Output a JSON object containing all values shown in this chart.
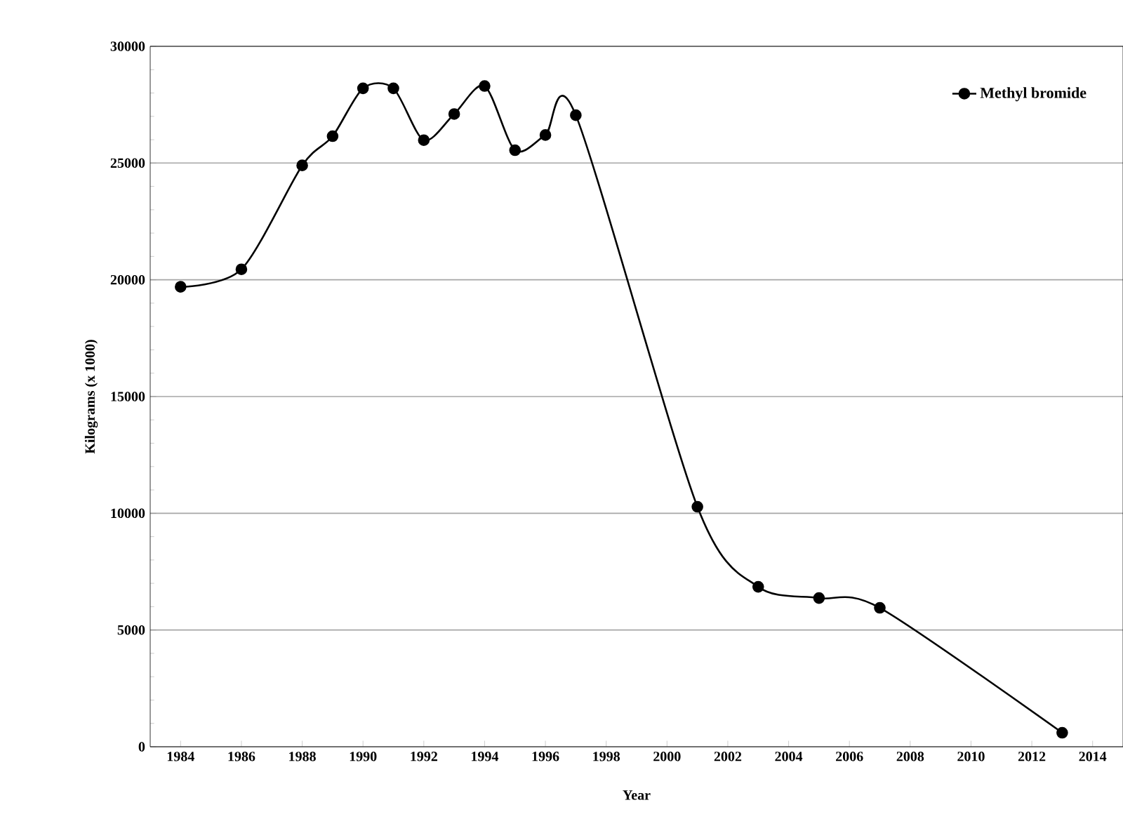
{
  "chart_data": {
    "type": "line",
    "xlabel": "Year",
    "ylabel": "Kilograms (x 1000)",
    "x": [
      1984,
      1986,
      1988,
      1989,
      1990,
      1991,
      1992,
      1993,
      1994,
      1995,
      1996,
      1997,
      2001,
      2003,
      2005,
      2007,
      2013
    ],
    "series": [
      {
        "name": "Methyl bromide",
        "color": "#000000",
        "values": [
          19700,
          20450,
          24900,
          26150,
          28200,
          28200,
          25980,
          27100,
          28300,
          25550,
          26200,
          27050,
          10280,
          6850,
          6370,
          5950,
          600
        ]
      }
    ],
    "xlim": [
      1983,
      2015
    ],
    "ylim": [
      0,
      30000
    ],
    "xticks": [
      1984,
      1986,
      1988,
      1990,
      1992,
      1994,
      1996,
      1998,
      2000,
      2002,
      2004,
      2006,
      2008,
      2010,
      2012,
      2014
    ],
    "yticks": [
      0,
      5000,
      10000,
      15000,
      20000,
      25000,
      30000
    ],
    "grid": "y",
    "legend": "top right",
    "marker": "circle",
    "line_style": "solid"
  }
}
